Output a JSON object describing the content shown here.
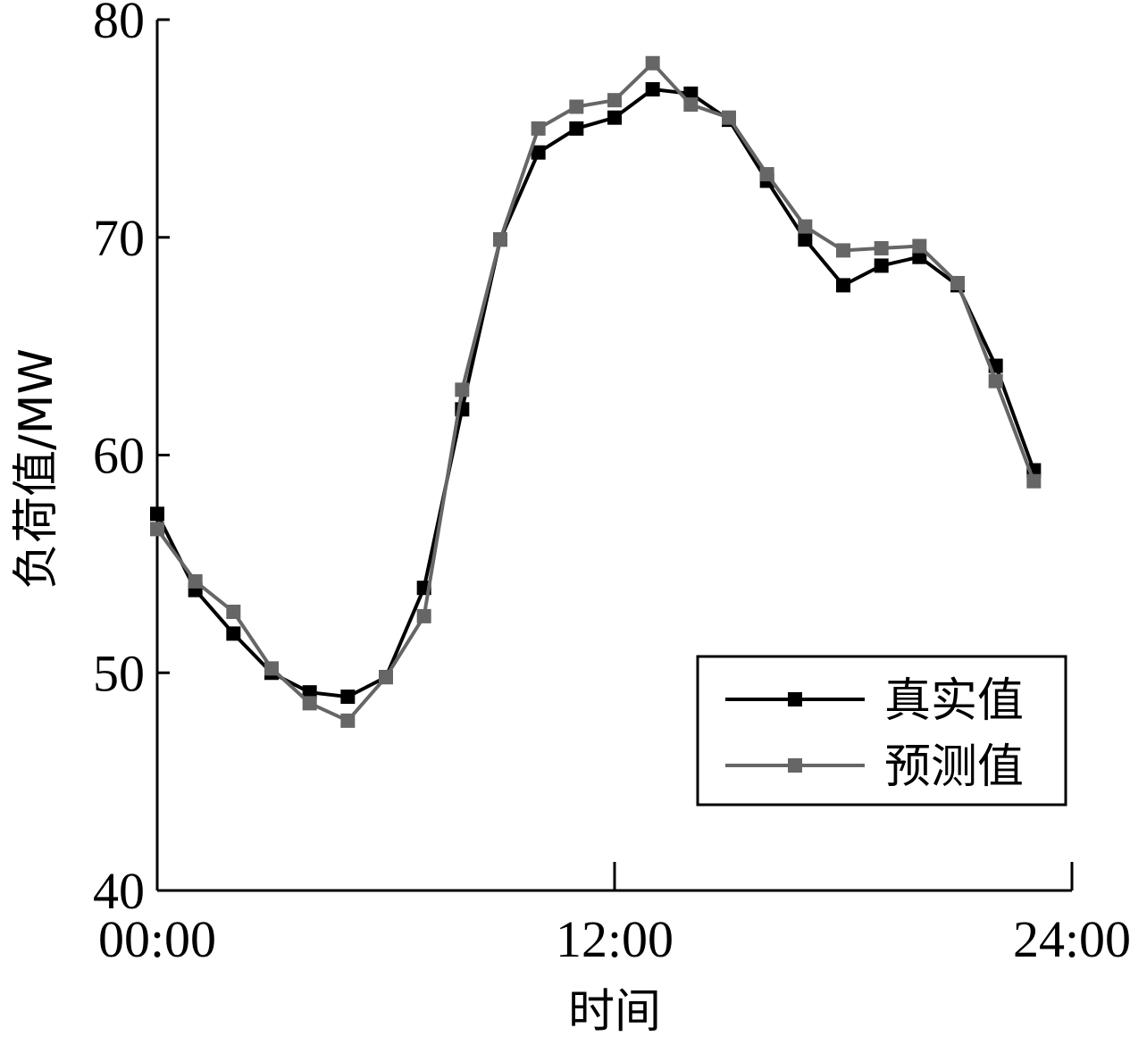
{
  "chart_data": {
    "type": "line",
    "title": "",
    "xlabel": "时间",
    "ylabel": "负荷值/MW",
    "x_tick_labels": [
      "00:00",
      "12:00",
      "24:00"
    ],
    "x_tick_hours": [
      0,
      12,
      24
    ],
    "xlim": [
      0,
      24
    ],
    "ylim": [
      40,
      80
    ],
    "y_ticks": [
      40,
      50,
      60,
      70,
      80
    ],
    "grid": false,
    "legend_position": "bottom-right",
    "x": [
      0,
      1,
      2,
      3,
      4,
      5,
      6,
      7,
      8,
      9,
      10,
      11,
      12,
      13,
      14,
      15,
      16,
      17,
      18,
      19,
      20,
      21,
      22,
      23
    ],
    "series": [
      {
        "name": "真实值",
        "color": "#000000",
        "values": [
          57.3,
          53.8,
          51.8,
          50.0,
          49.1,
          48.9,
          49.8,
          53.9,
          62.1,
          69.9,
          73.9,
          75.0,
          75.5,
          76.8,
          76.6,
          75.4,
          72.6,
          69.9,
          67.8,
          68.7,
          69.1,
          67.8,
          64.1,
          59.3
        ]
      },
      {
        "name": "预测值",
        "color": "#666666",
        "values": [
          56.6,
          54.2,
          52.8,
          50.2,
          48.6,
          47.8,
          49.8,
          52.6,
          63.0,
          69.9,
          75.0,
          76.0,
          76.3,
          78.0,
          76.1,
          75.5,
          72.9,
          70.5,
          69.4,
          69.5,
          69.6,
          67.9,
          63.4,
          58.8
        ]
      }
    ]
  }
}
